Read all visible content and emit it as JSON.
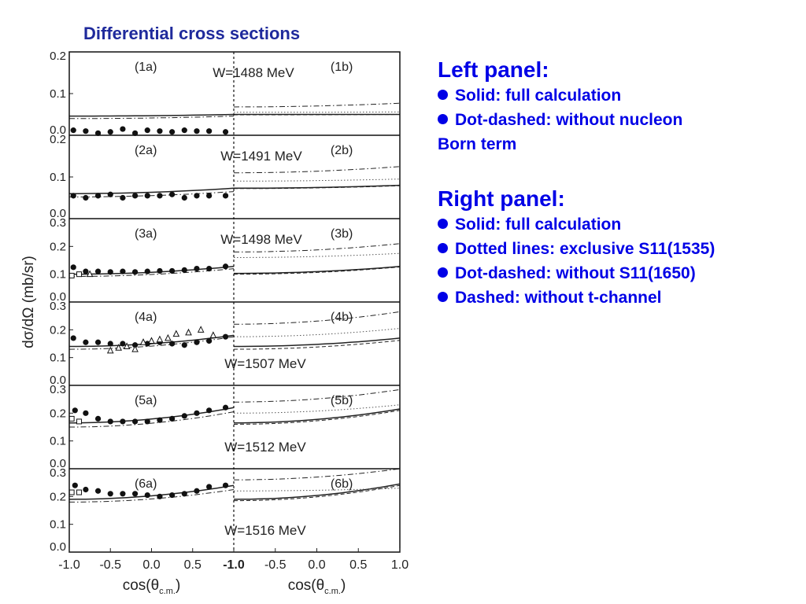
{
  "slide": {
    "title": "Differential cross sections"
  },
  "legend": {
    "left": {
      "heading": "Left panel:",
      "items": [
        "Solid: full calculation",
        "Dot-dashed: without nucleon",
        "Born term"
      ]
    },
    "right": {
      "heading": "Right panel:",
      "items": [
        "Solid: full calculation",
        "Dotted lines: exclusive S11(1535)",
        "Dot-dashed: without S11(1650)",
        "Dashed: without t-channel"
      ]
    }
  },
  "chart_data": {
    "type": "scatter",
    "ylabel": "dσ/dΩ (mb/sr)",
    "xlabel_left": "cos(θ",
    "xlabel_sub": "c.m.",
    "xlabel_close": ")",
    "x_ticks_left": [
      "-1.0",
      "-0.5",
      "0.0",
      "0.5"
    ],
    "x_ticks_right": [
      "-1.0",
      "-0.5",
      "0.0",
      "0.5",
      "1.0"
    ],
    "xlim": [
      -1.0,
      1.0
    ],
    "rows": [
      {
        "ylim": [
          0,
          0.2
        ],
        "yticks": [
          "0.0",
          "0.1",
          "0.2"
        ],
        "W": "W=1488 MeV",
        "label_a": "(1a)",
        "label_b": "(1b)",
        "points": {
          "x": [
            -0.95,
            -0.8,
            -0.65,
            -0.5,
            -0.35,
            -0.2,
            -0.05,
            0.1,
            0.25,
            0.4,
            0.55,
            0.7,
            0.9
          ],
          "y": [
            0.012,
            0.01,
            0.005,
            0.008,
            0.015,
            0.005,
            0.012,
            0.01,
            0.008,
            0.012,
            0.01,
            0.01,
            0.008
          ]
        },
        "open_squares": {
          "x": [],
          "y": []
        },
        "open_triangles": {
          "x": [],
          "y": []
        },
        "left_solid": [
          0.046,
          0.05
        ],
        "left_dashdot": [
          0.04,
          0.046
        ],
        "right_solid": [
          0.05,
          0.05
        ],
        "right_dotted": [
          0.055,
          0.056
        ],
        "right_dashdot": [
          0.068,
          0.077
        ],
        "right_dashed": [
          0.049,
          0.05
        ]
      },
      {
        "ylim": [
          0,
          0.2
        ],
        "yticks": [
          "0.0",
          "0.1",
          "0.2"
        ],
        "W": "W=1491 MeV",
        "label_a": "(2a)",
        "label_b": "(2b)",
        "points": {
          "x": [
            -0.95,
            -0.8,
            -0.65,
            -0.5,
            -0.35,
            -0.2,
            -0.05,
            0.1,
            0.25,
            0.4,
            0.55,
            0.7,
            0.9
          ],
          "y": [
            0.055,
            0.05,
            0.055,
            0.058,
            0.05,
            0.055,
            0.055,
            0.055,
            0.058,
            0.05,
            0.055,
            0.055,
            0.055
          ]
        },
        "open_squares": {
          "x": [],
          "y": []
        },
        "open_triangles": {
          "x": [],
          "y": []
        },
        "left_solid": [
          0.06,
          0.073
        ],
        "left_dashdot": [
          0.052,
          0.065
        ],
        "right_solid": [
          0.073,
          0.08
        ],
        "right_dotted": [
          0.09,
          0.095
        ],
        "right_dashdot": [
          0.11,
          0.125
        ],
        "right_dashed": [
          0.072,
          0.079
        ]
      },
      {
        "ylim": [
          0,
          0.3
        ],
        "yticks": [
          "0.0",
          "0.1",
          "0.2",
          "0.3"
        ],
        "W": "W=1498 MeV",
        "label_a": "(3a)",
        "label_b": "(3b)",
        "points": {
          "x": [
            -0.95,
            -0.8,
            -0.65,
            -0.5,
            -0.35,
            -0.2,
            -0.05,
            0.1,
            0.25,
            0.4,
            0.55,
            0.7,
            0.9
          ],
          "y": [
            0.125,
            0.11,
            0.11,
            0.108,
            0.11,
            0.108,
            0.11,
            0.112,
            0.112,
            0.115,
            0.12,
            0.12,
            0.128
          ]
        },
        "open_squares": {
          "x": [
            -0.97,
            -0.88
          ],
          "y": [
            0.095,
            0.1
          ]
        },
        "open_triangles": {
          "x": [
            -0.75
          ],
          "y": [
            0.1
          ]
        },
        "left_solid": [
          0.1,
          0.128
        ],
        "left_dashdot": [
          0.092,
          0.12
        ],
        "right_solid": [
          0.103,
          0.128
        ],
        "right_dotted": [
          0.16,
          0.175
        ],
        "right_dashdot": [
          0.18,
          0.21
        ],
        "right_dashed": [
          0.1,
          0.126
        ]
      },
      {
        "ylim": [
          0,
          0.3
        ],
        "yticks": [
          "0.0",
          "0.1",
          "0.2",
          "0.3"
        ],
        "W": "W=1507 MeV",
        "label_a": "(4a)",
        "label_b": "(4b)",
        "points": {
          "x": [
            -0.95,
            -0.8,
            -0.65,
            -0.5,
            -0.35,
            -0.2,
            -0.05,
            0.1,
            0.25,
            0.4,
            0.55,
            0.7,
            0.9
          ],
          "y": [
            0.17,
            0.155,
            0.155,
            0.15,
            0.15,
            0.145,
            0.15,
            0.155,
            0.15,
            0.145,
            0.155,
            0.16,
            0.175
          ]
        },
        "open_squares": {
          "x": [],
          "y": []
        },
        "open_triangles": {
          "x": [
            -0.5,
            -0.4,
            -0.3,
            -0.2,
            -0.1,
            0.0,
            0.1,
            0.2,
            0.3,
            0.45,
            0.6,
            0.75
          ],
          "y": [
            0.125,
            0.135,
            0.14,
            0.13,
            0.155,
            0.16,
            0.165,
            0.17,
            0.185,
            0.19,
            0.2,
            0.18
          ]
        },
        "left_solid": [
          0.14,
          0.18
        ],
        "left_dashdot": [
          0.13,
          0.175
        ],
        "right_solid": [
          0.14,
          0.17
        ],
        "right_dotted": [
          0.175,
          0.205
        ],
        "right_dashdot": [
          0.22,
          0.265
        ],
        "right_dashed": [
          0.13,
          0.162
        ]
      },
      {
        "ylim": [
          0,
          0.3
        ],
        "yticks": [
          "0.0",
          "0.1",
          "0.2",
          "0.3"
        ],
        "W": "W=1512 MeV",
        "label_a": "(5a)",
        "label_b": "(5b)",
        "points": {
          "x": [
            -0.93,
            -0.8,
            -0.65,
            -0.5,
            -0.35,
            -0.2,
            -0.05,
            0.1,
            0.25,
            0.4,
            0.55,
            0.7,
            0.9
          ],
          "y": [
            0.21,
            0.2,
            0.18,
            0.17,
            0.17,
            0.17,
            0.17,
            0.175,
            0.18,
            0.19,
            0.2,
            0.21,
            0.22
          ]
        },
        "open_squares": {
          "x": [
            -0.97,
            -0.88
          ],
          "y": [
            0.18,
            0.17
          ]
        },
        "open_triangles": {
          "x": [],
          "y": []
        },
        "left_solid": [
          0.165,
          0.22
        ],
        "left_dashdot": [
          0.15,
          0.205
        ],
        "right_solid": [
          0.165,
          0.215
        ],
        "right_dotted": [
          0.2,
          0.23
        ],
        "right_dashdot": [
          0.24,
          0.285
        ],
        "right_dashed": [
          0.16,
          0.21
        ]
      },
      {
        "ylim": [
          0,
          0.3
        ],
        "yticks": [
          "0.0",
          "0.1",
          "0.2",
          "0.3"
        ],
        "W": "W=1516 MeV",
        "label_a": "(6a)",
        "label_b": "(6b)",
        "points": {
          "x": [
            -0.93,
            -0.8,
            -0.65,
            -0.5,
            -0.35,
            -0.2,
            -0.05,
            0.1,
            0.25,
            0.4,
            0.55,
            0.7,
            0.9
          ],
          "y": [
            0.24,
            0.225,
            0.22,
            0.21,
            0.21,
            0.21,
            0.205,
            0.2,
            0.205,
            0.21,
            0.22,
            0.235,
            0.24
          ]
        },
        "open_squares": {
          "x": [
            -0.97,
            -0.88
          ],
          "y": [
            0.215,
            0.215
          ]
        },
        "open_triangles": {
          "x": [],
          "y": []
        },
        "left_solid": [
          0.19,
          0.24
        ],
        "left_dashdot": [
          0.18,
          0.225
        ],
        "right_solid": [
          0.19,
          0.245
        ],
        "right_dotted": [
          0.22,
          0.23
        ],
        "right_dashdot": [
          0.26,
          0.3
        ],
        "right_dashed": [
          0.185,
          0.24
        ]
      }
    ]
  }
}
